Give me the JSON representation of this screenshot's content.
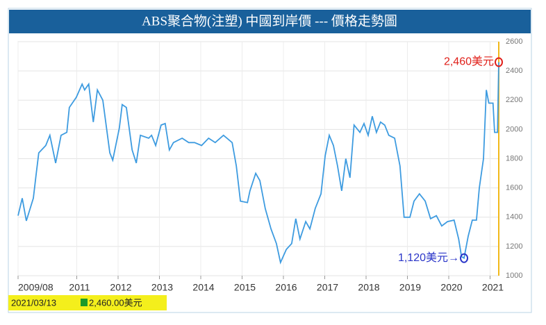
{
  "chart_data": {
    "type": "line",
    "title": "ABS聚合物(注塑) 中國到岸價 --- 價格走勢圖",
    "x": [
      2009.58,
      2009.68,
      2009.78,
      2009.95,
      2010.02,
      2010.08,
      2010.25,
      2010.35,
      2010.49,
      2010.62,
      2010.76,
      2010.82,
      2010.99,
      2011.13,
      2011.19,
      2011.29,
      2011.4,
      2011.5,
      2011.63,
      2011.8,
      2011.87,
      2012.03,
      2012.1,
      2012.2,
      2012.34,
      2012.44,
      2012.54,
      2012.74,
      2012.81,
      2012.91,
      2013.04,
      2013.14,
      2013.24,
      2013.34,
      2013.55,
      2013.71,
      2013.85,
      2014.02,
      2014.19,
      2014.35,
      2014.55,
      2014.76,
      2014.86,
      2014.96,
      2015.13,
      2015.19,
      2015.33,
      2015.43,
      2015.56,
      2015.7,
      2015.83,
      2015.93,
      2016.07,
      2016.2,
      2016.3,
      2016.4,
      2016.54,
      2016.64,
      2016.77,
      2016.91,
      2017.01,
      2017.11,
      2017.21,
      2017.31,
      2017.41,
      2017.51,
      2017.61,
      2017.71,
      2017.85,
      2017.95,
      2018.05,
      2018.15,
      2018.25,
      2018.35,
      2018.45,
      2018.55,
      2018.69,
      2018.82,
      2018.92,
      2019.06,
      2019.16,
      2019.29,
      2019.43,
      2019.56,
      2019.7,
      2019.83,
      2019.97,
      2020.13,
      2020.24,
      2020.31,
      2020.37,
      2020.47,
      2020.57,
      2020.67,
      2020.74,
      2020.84,
      2020.91,
      2020.97,
      2021.07,
      2021.11,
      2021.18,
      2021.21
    ],
    "values": [
      1410,
      1530,
      1375,
      1530,
      1700,
      1840,
      1890,
      1960,
      1770,
      1960,
      1980,
      2150,
      2220,
      2310,
      2270,
      2310,
      2050,
      2270,
      2200,
      1840,
      1790,
      2010,
      2170,
      2150,
      1860,
      1770,
      1960,
      1940,
      1960,
      1890,
      2030,
      2040,
      1860,
      1910,
      1940,
      1910,
      1910,
      1890,
      1940,
      1910,
      1960,
      1910,
      1750,
      1510,
      1500,
      1580,
      1700,
      1650,
      1460,
      1320,
      1220,
      1090,
      1180,
      1220,
      1390,
      1250,
      1370,
      1320,
      1460,
      1560,
      1820,
      1960,
      1890,
      1750,
      1580,
      1800,
      1670,
      2030,
      1980,
      2040,
      1960,
      2090,
      1980,
      2050,
      2030,
      1960,
      1940,
      1750,
      1400,
      1400,
      1510,
      1560,
      1510,
      1390,
      1410,
      1340,
      1370,
      1380,
      1250,
      1130,
      1120,
      1270,
      1380,
      1380,
      1600,
      1800,
      2270,
      2180,
      2180,
      1980,
      1980,
      2460
    ],
    "color": "#3d9be0",
    "xlim": [
      2009.58,
      2021.21
    ],
    "xticks": [
      {
        "value": 2009.58,
        "label": "2009/08"
      },
      2011,
      2012,
      2013,
      2014,
      2015,
      2016,
      2017,
      2018,
      2019,
      2020,
      2021
    ],
    "ylim": [
      1000,
      2600
    ],
    "yticks": [
      1000,
      1200,
      1400,
      1600,
      1800,
      2000,
      2200,
      2400,
      2600
    ],
    "grid": true,
    "annotations": [
      {
        "text": "2,460美元",
        "x": 2021.21,
        "y": 2460,
        "color": "#e0201a"
      },
      {
        "text": "1,120美元→",
        "x": 2020.37,
        "y": 1120,
        "color": "#2a35c8"
      }
    ],
    "status": {
      "date": "2021/03/13",
      "value": "2,460.00美元"
    }
  }
}
